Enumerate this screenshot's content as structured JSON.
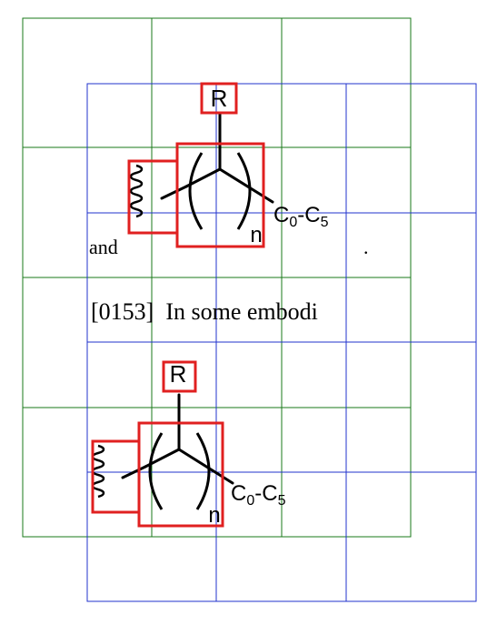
{
  "colors": {
    "grid_outer": "#1a7a1a",
    "grid_inner": "#2233cc",
    "highlight_box": "#e02020",
    "ink": "#000000"
  },
  "top_structure": {
    "r_label": "R",
    "n_label": "n",
    "c_base_1": "C",
    "c_sub_1": "0",
    "c_dash": "-",
    "c_base_2": "C",
    "c_sub_2": "5"
  },
  "text": {
    "and": "and",
    "period": ".",
    "paragraph": "[0153]  In some embodi"
  },
  "bottom_structure": {
    "r_label": "R",
    "n_label": "n",
    "c_base_1": "C",
    "c_sub_1": "0",
    "c_dash": "-",
    "c_base_2": "C",
    "c_sub_2": "5"
  }
}
